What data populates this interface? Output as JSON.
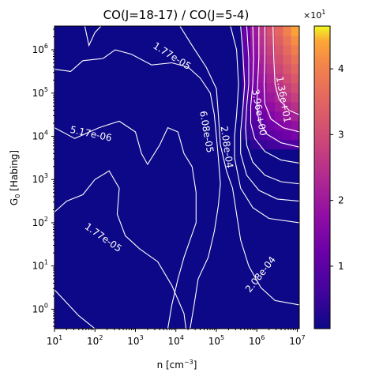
{
  "chart_data": {
    "type": "heatmap",
    "title": "CO(J=18-17) / CO(J=5-4)",
    "xlabel": "n [cm",
    "xlabel_sup": "−3",
    "xlabel_end": "]",
    "ylabel": "G",
    "ylabel_sub": "0",
    "ylabel_rest": " [Habing]",
    "x_scale": "log",
    "y_scale": "log",
    "xlim_log10": [
      1.0,
      7.05
    ],
    "ylim_log10": [
      -0.45,
      6.55
    ],
    "x_ticks": [
      {
        "exp": 1,
        "label_base": "10",
        "label_exp": "1"
      },
      {
        "exp": 2,
        "label_base": "10",
        "label_exp": "2"
      },
      {
        "exp": 3,
        "label_base": "10",
        "label_exp": "3"
      },
      {
        "exp": 4,
        "label_base": "10",
        "label_exp": "4"
      },
      {
        "exp": 5,
        "label_base": "10",
        "label_exp": "5"
      },
      {
        "exp": 6,
        "label_base": "10",
        "label_exp": "6"
      },
      {
        "exp": 7,
        "label_base": "10",
        "label_exp": "7"
      }
    ],
    "y_ticks": [
      {
        "exp": 0,
        "label_base": "10",
        "label_exp": "0"
      },
      {
        "exp": 1,
        "label_base": "10",
        "label_exp": "1"
      },
      {
        "exp": 2,
        "label_base": "10",
        "label_exp": "2"
      },
      {
        "exp": 3,
        "label_base": "10",
        "label_exp": "3"
      },
      {
        "exp": 4,
        "label_base": "10",
        "label_exp": "4"
      },
      {
        "exp": 5,
        "label_base": "10",
        "label_exp": "5"
      },
      {
        "exp": 6,
        "label_base": "10",
        "label_exp": "6"
      }
    ],
    "colormap": "plasma",
    "colorbar": {
      "range": [
        0.05,
        4.65
      ],
      "ticks": [
        1,
        2,
        3,
        4
      ],
      "tick_labels": [
        "1",
        "2",
        "3",
        "4"
      ],
      "offset_base": "×10",
      "offset_exp": "1"
    },
    "contour_labels": [
      {
        "text": "1.77e-05",
        "x_log": 3.9,
        "y_log": 5.85,
        "rotate": 32
      },
      {
        "text": "5.17e-06",
        "x_log": 1.9,
        "y_log": 4.05,
        "rotate": 12
      },
      {
        "text": "1.77e-05",
        "x_log": 2.2,
        "y_log": 1.65,
        "rotate": 35
      },
      {
        "text": "6.08e-05",
        "x_log": 4.75,
        "y_log": 4.1,
        "rotate": 80
      },
      {
        "text": "2.08e-04",
        "x_log": 5.25,
        "y_log": 3.75,
        "rotate": 82
      },
      {
        "text": "2.08e-04",
        "x_log": 6.1,
        "y_log": 0.8,
        "rotate": -52
      },
      {
        "text": "1.36e+01",
        "x_log": 6.65,
        "y_log": 4.85,
        "rotate": 80
      },
      {
        "text": "3.96e+00",
        "x_log": 6.05,
        "y_log": 4.55,
        "rotate": 80
      }
    ],
    "colors": {
      "background": "#0d0887",
      "contour": "#ffffff"
    }
  }
}
